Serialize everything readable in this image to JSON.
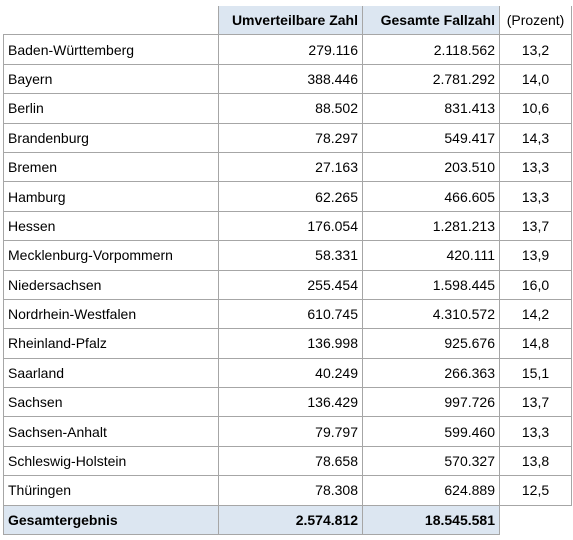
{
  "table": {
    "header": [
      "",
      "Umverteilbare Zahl",
      "Gesamte Fallzahl",
      "(Prozent)"
    ],
    "rows": [
      [
        "Baden-Württemberg",
        "279.116",
        "2.118.562",
        "13,2"
      ],
      [
        "Bayern",
        "388.446",
        "2.781.292",
        "14,0"
      ],
      [
        "Berlin",
        "88.502",
        "831.413",
        "10,6"
      ],
      [
        "Brandenburg",
        "78.297",
        "549.417",
        "14,3"
      ],
      [
        "Bremen",
        "27.163",
        "203.510",
        "13,3"
      ],
      [
        "Hamburg",
        "62.265",
        "466.605",
        "13,3"
      ],
      [
        "Hessen",
        "176.054",
        "1.281.213",
        "13,7"
      ],
      [
        "Mecklenburg-Vorpommern",
        "58.331",
        "420.111",
        "13,9"
      ],
      [
        "Niedersachsen",
        "255.454",
        "1.598.445",
        "16,0"
      ],
      [
        "Nordrhein-Westfalen",
        "610.745",
        "4.310.572",
        "14,2"
      ],
      [
        "Rheinland-Pfalz",
        "136.998",
        "925.676",
        "14,8"
      ],
      [
        "Saarland",
        "40.249",
        "266.363",
        "15,1"
      ],
      [
        "Sachsen",
        "136.429",
        "997.726",
        "13,7"
      ],
      [
        "Sachsen-Anhalt",
        "79.797",
        "599.460",
        "13,3"
      ],
      [
        "Schleswig-Holstein",
        "78.658",
        "570.327",
        "13,8"
      ],
      [
        "Thüringen",
        "78.308",
        "624.889",
        "12,5"
      ]
    ],
    "total": [
      "Gesamtergebnis",
      "2.574.812",
      "18.545.581"
    ]
  }
}
